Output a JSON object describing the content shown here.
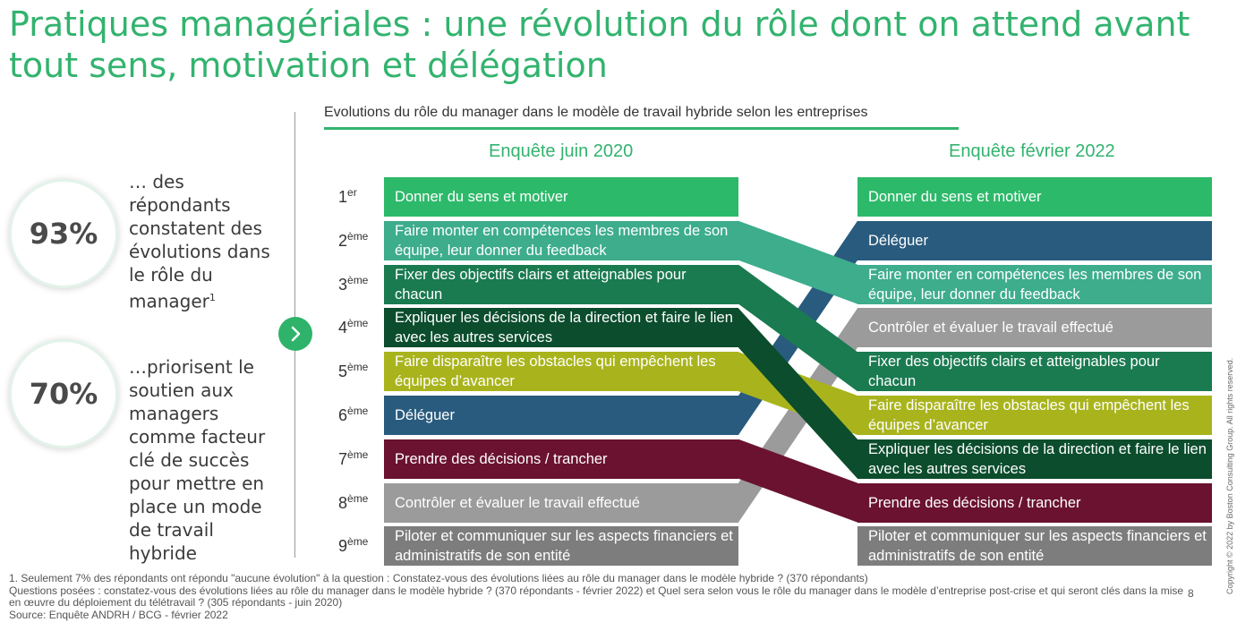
{
  "title": "Pratiques managériales : une révolution du rôle dont on attend avant tout sens, motivation et délégation",
  "stats": [
    {
      "value": "93%",
      "text": "… des répondants constatent des évolutions dans le rôle du manager",
      "footnote_marker": "1"
    },
    {
      "value": "70%",
      "text": "…priorisent le soutien aux managers comme facteur clé de succès pour mettre en place un mode de travail hybride"
    }
  ],
  "subtitle": "Evolutions du rôle du manager dans le modèle de travail hybride selon les entreprises",
  "columns": {
    "left": "Enquête juin 2020",
    "right": "Enquête février 2022"
  },
  "ranks": [
    {
      "num": "1",
      "suffix": "er"
    },
    {
      "num": "2",
      "suffix": "ème"
    },
    {
      "num": "3",
      "suffix": "ème"
    },
    {
      "num": "4",
      "suffix": "ème"
    },
    {
      "num": "5",
      "suffix": "ème"
    },
    {
      "num": "6",
      "suffix": "ème"
    },
    {
      "num": "7",
      "suffix": "ème"
    },
    {
      "num": "8",
      "suffix": "ème"
    },
    {
      "num": "9",
      "suffix": "ème"
    }
  ],
  "items": [
    {
      "id": "sens",
      "label": "Donner du sens et motiver",
      "color": "#2db96a",
      "rank_2020": 1,
      "rank_2022": 1
    },
    {
      "id": "competences",
      "label": "Faire monter en compétences les membres de son équipe, leur donner du feedback",
      "color": "#3dad8c",
      "rank_2020": 2,
      "rank_2022": 3
    },
    {
      "id": "objectifs",
      "label": "Fixer des objectifs clairs et atteignables pour chacun",
      "color": "#1a7a50",
      "rank_2020": 3,
      "rank_2022": 5
    },
    {
      "id": "expliquer",
      "label": "Expliquer les décisions de la direction et faire le lien avec les autres services",
      "color": "#0b4d2c",
      "rank_2020": 4,
      "rank_2022": 7
    },
    {
      "id": "obstacles",
      "label": "Faire disparaître les obstacles qui empêchent les équipes d’avancer",
      "color": "#a9b41d",
      "rank_2020": 5,
      "rank_2022": 6
    },
    {
      "id": "deleguer",
      "label": "Déléguer",
      "color": "#295b7e",
      "rank_2020": 6,
      "rank_2022": 2
    },
    {
      "id": "trancher",
      "label": "Prendre des décisions / trancher",
      "color": "#6a1230",
      "rank_2020": 7,
      "rank_2022": 8
    },
    {
      "id": "controler",
      "label": "Contrôler et évaluer le travail effectué",
      "color": "#9b9b9b",
      "rank_2020": 8,
      "rank_2022": 4
    },
    {
      "id": "piloter",
      "label": "Piloter et communiquer sur les aspects financiers et administratifs de son entité",
      "color": "#7d7d7d",
      "rank_2020": 9,
      "rank_2022": 9
    }
  ],
  "footnotes": [
    "1. Seulement 7% des répondants ont répondu \"aucune évolution\" à la question : Constatez-vous des évolutions liées au rôle du manager dans le modèle hybride ? (370 répondants)",
    "Questions posées : constatez-vous des évolutions liées au rôle du manager dans le modèle hybride ? (370 répondants - février 2022) et Quel sera selon vous le rôle du manager dans le modèle d’entreprise post-crise et qui seront clés dans la mise en œuvre du déploiement du télétravail ? (305 répondants - juin 2020)",
    "Source: Enquête ANDRH / BCG - février 2022"
  ],
  "page_number": "8",
  "copyright": "Copyright © 2022 by Boston Consulting Group. All rights reserved."
}
